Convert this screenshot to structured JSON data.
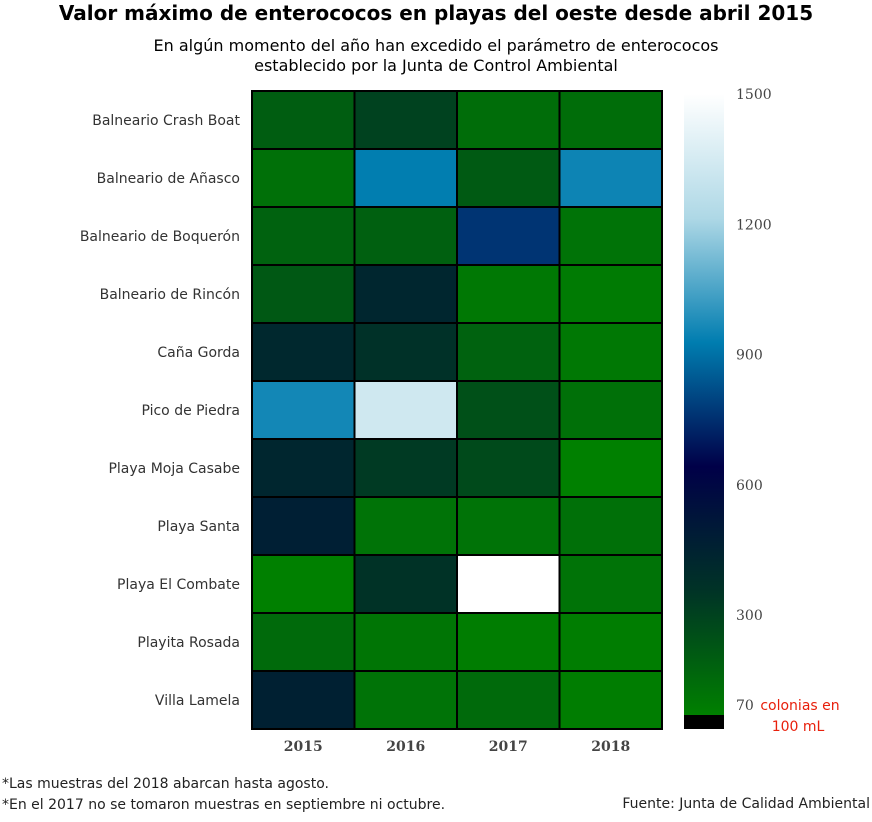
{
  "chart_data": {
    "type": "heatmap",
    "title": "Valor máximo de enterococos en playas del oeste desde abril 2015",
    "subtitle_lines": [
      "En algún momento del año han excedido el parámetro de enterococos",
      "establecido por la Junta de Control Ambiental"
    ],
    "x": [
      "2015",
      "2016",
      "2017",
      "2018"
    ],
    "y": [
      "Balneario Crash Boat",
      "Balneario de Añasco",
      "Balneario de Boquerón",
      "Balneario de Rincón",
      "Caña Gorda",
      "Pico de Piedra",
      "Playa Moja Casabe",
      "Playa Santa",
      "Playa El Combate",
      "Playita Rosada",
      "Villa Lamela"
    ],
    "values": [
      [
        200,
        300,
        140,
        140
      ],
      [
        130,
        930,
        210,
        950
      ],
      [
        180,
        190,
        760,
        120
      ],
      [
        220,
        430,
        100,
        90
      ],
      [
        420,
        370,
        180,
        100
      ],
      [
        960,
        1330,
        250,
        130
      ],
      [
        430,
        330,
        270,
        70
      ],
      [
        470,
        120,
        120,
        130
      ],
      [
        70,
        360,
        1500,
        120
      ],
      [
        150,
        110,
        80,
        80
      ],
      [
        460,
        120,
        150,
        80
      ]
    ],
    "colorbar": {
      "min": 70,
      "max": 1500,
      "ticks": [
        70,
        300,
        600,
        900,
        1200,
        1500
      ],
      "unit_label_lines": [
        "colonias en",
        "100 mL"
      ],
      "unit_color": "#e8200c"
    },
    "colors": {
      "stops": [
        "#008000",
        "#003326",
        "#000048",
        "#007db0",
        "#aed8e6",
        "#ffffff"
      ],
      "grid_line": "#000000",
      "colorbar_base": "#000000"
    }
  },
  "notes": [
    "*Las muestras del 2018 abarcan hasta agosto.",
    "*En el 2017 no se tomaron muestras en septiembre ni octubre."
  ],
  "source": "Fuente: Junta de Calidad Ambiental"
}
